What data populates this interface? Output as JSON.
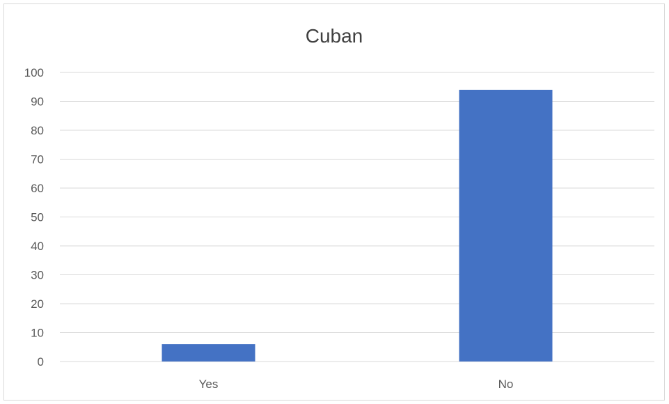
{
  "chart_data": {
    "type": "bar",
    "title": "Cuban",
    "categories": [
      "Yes",
      "No"
    ],
    "values": [
      6,
      94
    ],
    "ylim": [
      0,
      100
    ],
    "yticks": [
      0,
      10,
      20,
      30,
      40,
      50,
      60,
      70,
      80,
      90,
      100
    ],
    "grid": true,
    "legend": "none",
    "bar_color": "#4472c4",
    "gridline_color": "#d9d9d9"
  }
}
